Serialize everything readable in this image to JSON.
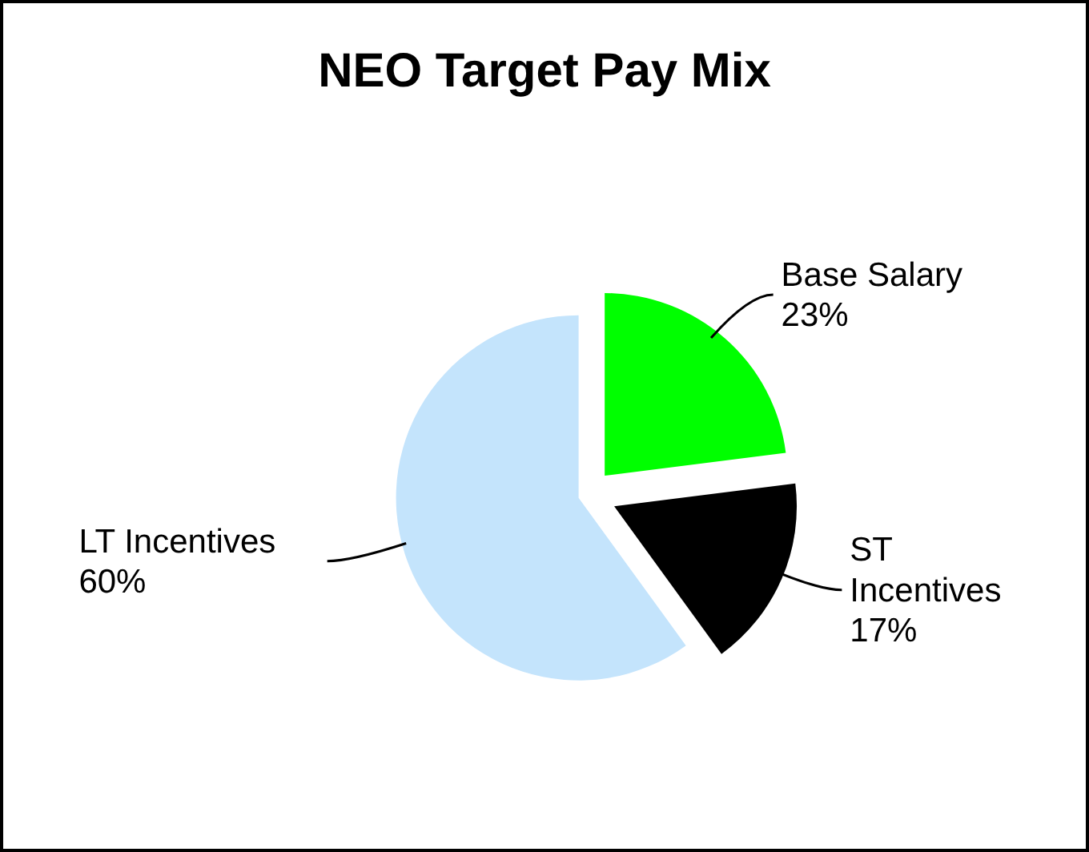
{
  "chart_data": {
    "type": "pie",
    "title": "NEO Target Pay Mix",
    "categories": [
      "Base Salary",
      "ST Incentives",
      "LT Incentives"
    ],
    "values": [
      23,
      17,
      60
    ],
    "colors": [
      "#00ff00",
      "#000000",
      "#c4e4fc"
    ],
    "value_labels": [
      "23%",
      "17%",
      "60%"
    ]
  }
}
